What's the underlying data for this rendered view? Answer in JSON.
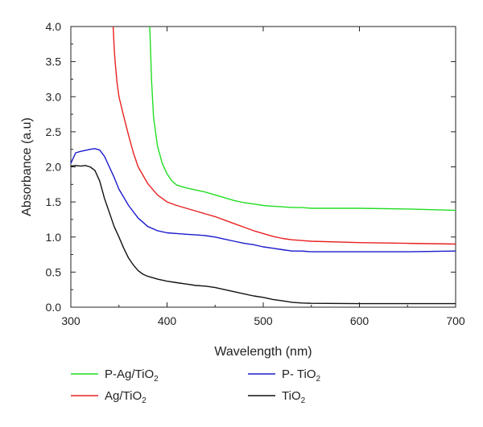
{
  "chart_data": {
    "type": "line",
    "title": "",
    "xlabel": "Wavelength (nm)",
    "ylabel": "Absorbance (a.u)",
    "xlim": [
      300,
      700
    ],
    "ylim": [
      0.0,
      4.0
    ],
    "xticks": [
      300,
      400,
      500,
      600,
      700
    ],
    "yticks": [
      0.0,
      0.5,
      1.0,
      1.5,
      2.0,
      2.5,
      3.0,
      3.5,
      4.0
    ],
    "ytick_labels": [
      "0.0",
      "0.5",
      "1.0",
      "1.5",
      "2.0",
      "2.5",
      "3.0",
      "3.5",
      "4.0"
    ],
    "grid": false,
    "legend_placement": "below",
    "series": [
      {
        "name": "P-Ag/TiO2",
        "name_main": "P-Ag/TiO",
        "name_sub": "2",
        "color": "#22dd22",
        "points": [
          [
            382,
            4.0
          ],
          [
            384,
            3.2
          ],
          [
            386,
            2.7
          ],
          [
            390,
            2.3
          ],
          [
            395,
            2.05
          ],
          [
            400,
            1.9
          ],
          [
            405,
            1.8
          ],
          [
            410,
            1.74
          ],
          [
            420,
            1.7
          ],
          [
            430,
            1.67
          ],
          [
            440,
            1.64
          ],
          [
            450,
            1.6
          ],
          [
            460,
            1.56
          ],
          [
            470,
            1.52
          ],
          [
            480,
            1.49
          ],
          [
            490,
            1.47
          ],
          [
            500,
            1.45
          ],
          [
            510,
            1.44
          ],
          [
            520,
            1.43
          ],
          [
            530,
            1.42
          ],
          [
            540,
            1.42
          ],
          [
            550,
            1.41
          ],
          [
            600,
            1.41
          ],
          [
            650,
            1.4
          ],
          [
            700,
            1.38
          ]
        ]
      },
      {
        "name": "Ag/TiO2",
        "name_main": "Ag/TiO",
        "name_sub": "2",
        "color": "#e82020",
        "points": [
          [
            344,
            4.0
          ],
          [
            345,
            3.7
          ],
          [
            346,
            3.5
          ],
          [
            348,
            3.2
          ],
          [
            350,
            3.0
          ],
          [
            355,
            2.72
          ],
          [
            360,
            2.45
          ],
          [
            365,
            2.2
          ],
          [
            370,
            2.0
          ],
          [
            380,
            1.76
          ],
          [
            390,
            1.6
          ],
          [
            400,
            1.5
          ],
          [
            410,
            1.45
          ],
          [
            420,
            1.41
          ],
          [
            430,
            1.37
          ],
          [
            440,
            1.33
          ],
          [
            450,
            1.29
          ],
          [
            460,
            1.24
          ],
          [
            470,
            1.19
          ],
          [
            480,
            1.14
          ],
          [
            490,
            1.09
          ],
          [
            500,
            1.05
          ],
          [
            510,
            1.01
          ],
          [
            520,
            0.98
          ],
          [
            530,
            0.96
          ],
          [
            540,
            0.95
          ],
          [
            550,
            0.94
          ],
          [
            600,
            0.92
          ],
          [
            650,
            0.91
          ],
          [
            700,
            0.9
          ]
        ]
      },
      {
        "name": "P-TiO2",
        "name_main": "P- TiO",
        "name_sub": "2",
        "color": "#1a1acc",
        "points": [
          [
            300,
            2.05
          ],
          [
            305,
            2.2
          ],
          [
            310,
            2.22
          ],
          [
            320,
            2.25
          ],
          [
            325,
            2.26
          ],
          [
            330,
            2.24
          ],
          [
            335,
            2.15
          ],
          [
            340,
            2.0
          ],
          [
            345,
            1.85
          ],
          [
            350,
            1.68
          ],
          [
            360,
            1.45
          ],
          [
            370,
            1.27
          ],
          [
            380,
            1.15
          ],
          [
            390,
            1.09
          ],
          [
            400,
            1.06
          ],
          [
            410,
            1.05
          ],
          [
            420,
            1.04
          ],
          [
            430,
            1.03
          ],
          [
            440,
            1.02
          ],
          [
            450,
            1.0
          ],
          [
            460,
            0.97
          ],
          [
            470,
            0.94
          ],
          [
            480,
            0.91
          ],
          [
            490,
            0.89
          ],
          [
            500,
            0.86
          ],
          [
            510,
            0.84
          ],
          [
            520,
            0.82
          ],
          [
            530,
            0.8
          ],
          [
            540,
            0.8
          ],
          [
            550,
            0.79
          ],
          [
            600,
            0.79
          ],
          [
            650,
            0.79
          ],
          [
            700,
            0.8
          ]
        ]
      },
      {
        "name": "TiO2",
        "name_main": "TiO",
        "name_sub": "2",
        "color": "#111111",
        "points": [
          [
            300,
            2.01
          ],
          [
            305,
            2.02
          ],
          [
            310,
            2.01
          ],
          [
            315,
            2.02
          ],
          [
            320,
            2.0
          ],
          [
            325,
            1.95
          ],
          [
            330,
            1.8
          ],
          [
            335,
            1.55
          ],
          [
            340,
            1.35
          ],
          [
            345,
            1.15
          ],
          [
            350,
            1.0
          ],
          [
            355,
            0.84
          ],
          [
            360,
            0.7
          ],
          [
            365,
            0.6
          ],
          [
            370,
            0.52
          ],
          [
            375,
            0.47
          ],
          [
            380,
            0.44
          ],
          [
            390,
            0.4
          ],
          [
            400,
            0.37
          ],
          [
            410,
            0.35
          ],
          [
            420,
            0.33
          ],
          [
            430,
            0.31
          ],
          [
            440,
            0.3
          ],
          [
            450,
            0.28
          ],
          [
            460,
            0.25
          ],
          [
            470,
            0.22
          ],
          [
            480,
            0.19
          ],
          [
            490,
            0.16
          ],
          [
            500,
            0.14
          ],
          [
            510,
            0.11
          ],
          [
            520,
            0.09
          ],
          [
            530,
            0.07
          ],
          [
            540,
            0.06
          ],
          [
            550,
            0.055
          ],
          [
            600,
            0.05
          ],
          [
            650,
            0.05
          ],
          [
            700,
            0.05
          ]
        ]
      }
    ],
    "legend_order": [
      0,
      2,
      1,
      3
    ]
  }
}
